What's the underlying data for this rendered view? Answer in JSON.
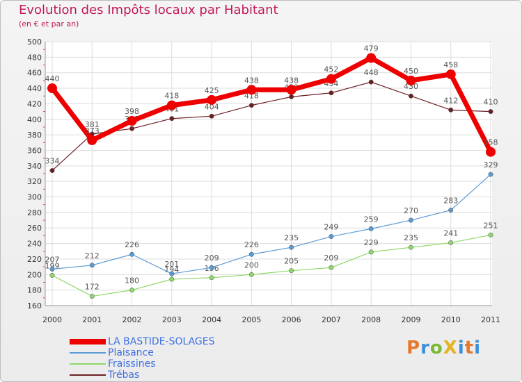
{
  "title": "Evolution des Impôts locaux par Habitant",
  "subtitle": "(en € et par an)",
  "logo_text": "ProXiti",
  "chart_data": {
    "type": "line",
    "title": "Evolution des Impôts locaux par Habitant",
    "subtitle": "(en € et par an)",
    "categories": [
      "2000",
      "2001",
      "2002",
      "2003",
      "2004",
      "2005",
      "2006",
      "2007",
      "2008",
      "2009",
      "2010",
      "2011"
    ],
    "ylim": [
      160,
      500
    ],
    "yticks": [
      160,
      180,
      200,
      220,
      240,
      260,
      280,
      300,
      320,
      340,
      360,
      380,
      400,
      420,
      440,
      460,
      480,
      500
    ],
    "grid": true,
    "series": [
      {
        "name": "Trébas",
        "color": "#6b1f24",
        "values": [
          334,
          381,
          388,
          401,
          404,
          418,
          429,
          434,
          448,
          430,
          412,
          410
        ]
      },
      {
        "name": "Fraissines",
        "color": "#8fd86a",
        "values": [
          199,
          172,
          180,
          194,
          196,
          200,
          205,
          209,
          229,
          235,
          241,
          251
        ]
      },
      {
        "name": "Plaisance",
        "color": "#5b9bd5",
        "values": [
          207,
          212,
          226,
          201,
          209,
          226,
          235,
          249,
          259,
          270,
          283,
          329
        ]
      },
      {
        "name": "LA BASTIDE-SOLAGES",
        "color": "#ee0000",
        "values": [
          440,
          373,
          398,
          418,
          425,
          438,
          438,
          452,
          479,
          450,
          458,
          358
        ]
      }
    ],
    "legend_order": [
      "LA BASTIDE-SOLAGES",
      "Plaisance",
      "Fraissines",
      "Trébas"
    ]
  }
}
